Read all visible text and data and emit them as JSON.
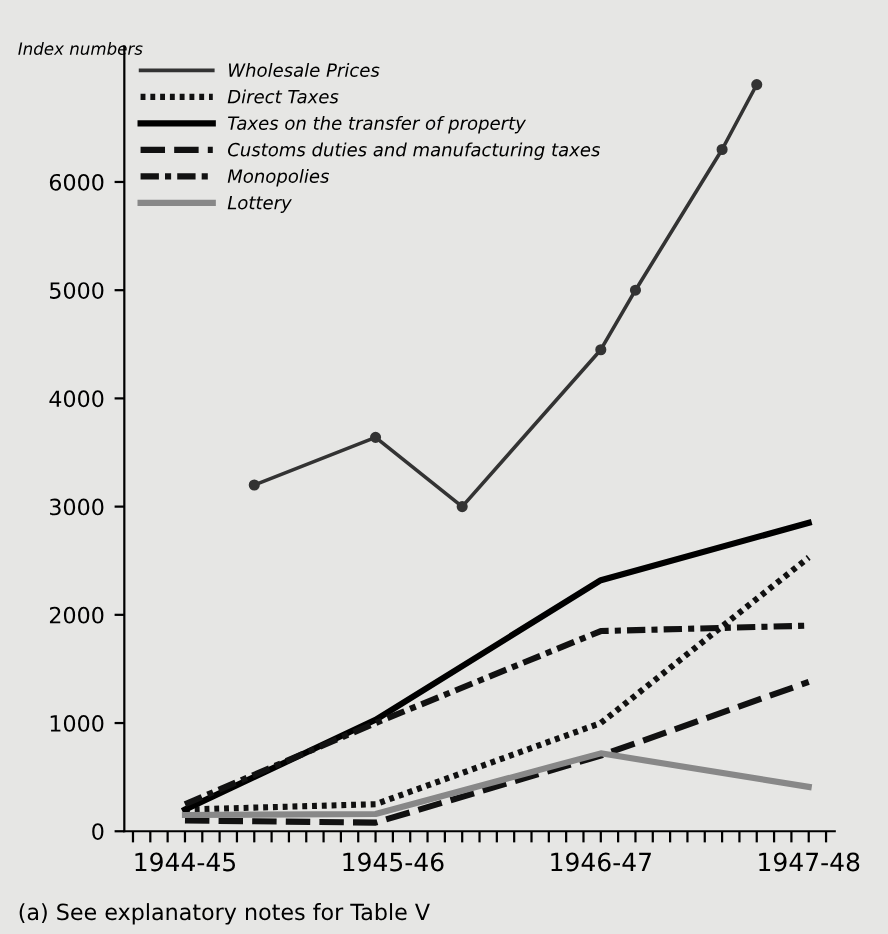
{
  "chart_data": {
    "type": "line",
    "ylabel": "Index numbers",
    "categories": [
      null,
      null,
      null,
      "1944-45",
      null,
      null,
      null,
      null,
      null,
      null,
      null,
      null,
      null,
      null,
      null,
      "1945-46",
      null,
      null,
      null,
      null,
      null,
      null,
      null,
      null,
      null,
      null,
      null,
      "1946-47",
      null,
      null,
      null,
      null,
      null,
      null,
      null,
      null,
      null,
      null,
      null,
      "1947-48",
      null
    ],
    "ylim": [
      0,
      7250
    ],
    "yticks": [
      0,
      1000,
      2000,
      3000,
      4000,
      5000,
      6000
    ],
    "legend": "top left",
    "series": [
      {
        "name": "Wholesale Prices",
        "color": "#333333",
        "line_style": "solid",
        "marker": "circle",
        "values": [
          null,
          null,
          null,
          null,
          null,
          null,
          null,
          3200,
          null,
          null,
          null,
          null,
          null,
          null,
          3640,
          null,
          null,
          null,
          null,
          3000,
          null,
          null,
          null,
          null,
          null,
          null,
          null,
          4450,
          null,
          5000,
          null,
          null,
          null,
          null,
          6300,
          null,
          6900,
          null,
          null,
          null,
          null
        ]
      },
      {
        "name": "Direct Taxes",
        "color": "#111111",
        "line_style": "dotted",
        "values": [
          null,
          null,
          null,
          200,
          null,
          null,
          null,
          null,
          null,
          null,
          null,
          null,
          null,
          null,
          250,
          null,
          null,
          null,
          null,
          null,
          null,
          null,
          null,
          null,
          null,
          null,
          null,
          1000,
          null,
          null,
          null,
          null,
          null,
          null,
          null,
          null,
          null,
          null,
          null,
          2530,
          null
        ]
      },
      {
        "name": "Taxes on the transfer of property",
        "color": "#000000",
        "line_style": "solid",
        "values": [
          null,
          null,
          null,
          200,
          null,
          null,
          null,
          null,
          null,
          null,
          null,
          null,
          null,
          null,
          1030,
          null,
          null,
          null,
          null,
          null,
          null,
          null,
          null,
          null,
          null,
          null,
          null,
          2320,
          null,
          null,
          null,
          null,
          null,
          null,
          null,
          null,
          null,
          null,
          null,
          2850,
          null
        ]
      },
      {
        "name": "Customs duties and manufacturing taxes",
        "color": "#111111",
        "line_style": "dashed",
        "values": [
          null,
          null,
          null,
          100,
          null,
          null,
          null,
          null,
          null,
          null,
          null,
          null,
          null,
          null,
          80,
          null,
          null,
          null,
          null,
          null,
          null,
          null,
          null,
          null,
          null,
          null,
          null,
          700,
          null,
          null,
          null,
          null,
          null,
          null,
          null,
          null,
          null,
          null,
          null,
          1380,
          null
        ]
      },
      {
        "name": "Monopolies",
        "color": "#111111",
        "line_style": "dashdot",
        "values": [
          null,
          null,
          null,
          250,
          null,
          null,
          null,
          null,
          null,
          null,
          null,
          null,
          null,
          null,
          1000,
          null,
          null,
          null,
          null,
          null,
          null,
          null,
          null,
          null,
          null,
          null,
          null,
          1850,
          null,
          null,
          null,
          null,
          null,
          null,
          null,
          null,
          null,
          null,
          null,
          1900,
          null
        ]
      },
      {
        "name": "Lottery",
        "color": "#888888",
        "line_style": "solid",
        "values": [
          null,
          null,
          null,
          150,
          null,
          null,
          null,
          null,
          null,
          null,
          null,
          null,
          null,
          null,
          160,
          null,
          null,
          null,
          null,
          null,
          null,
          null,
          null,
          null,
          null,
          null,
          null,
          720,
          null,
          null,
          null,
          null,
          null,
          null,
          null,
          null,
          null,
          null,
          null,
          410,
          null
        ]
      }
    ],
    "annotations": [
      "(a) See explanatory notes for Table V"
    ]
  }
}
